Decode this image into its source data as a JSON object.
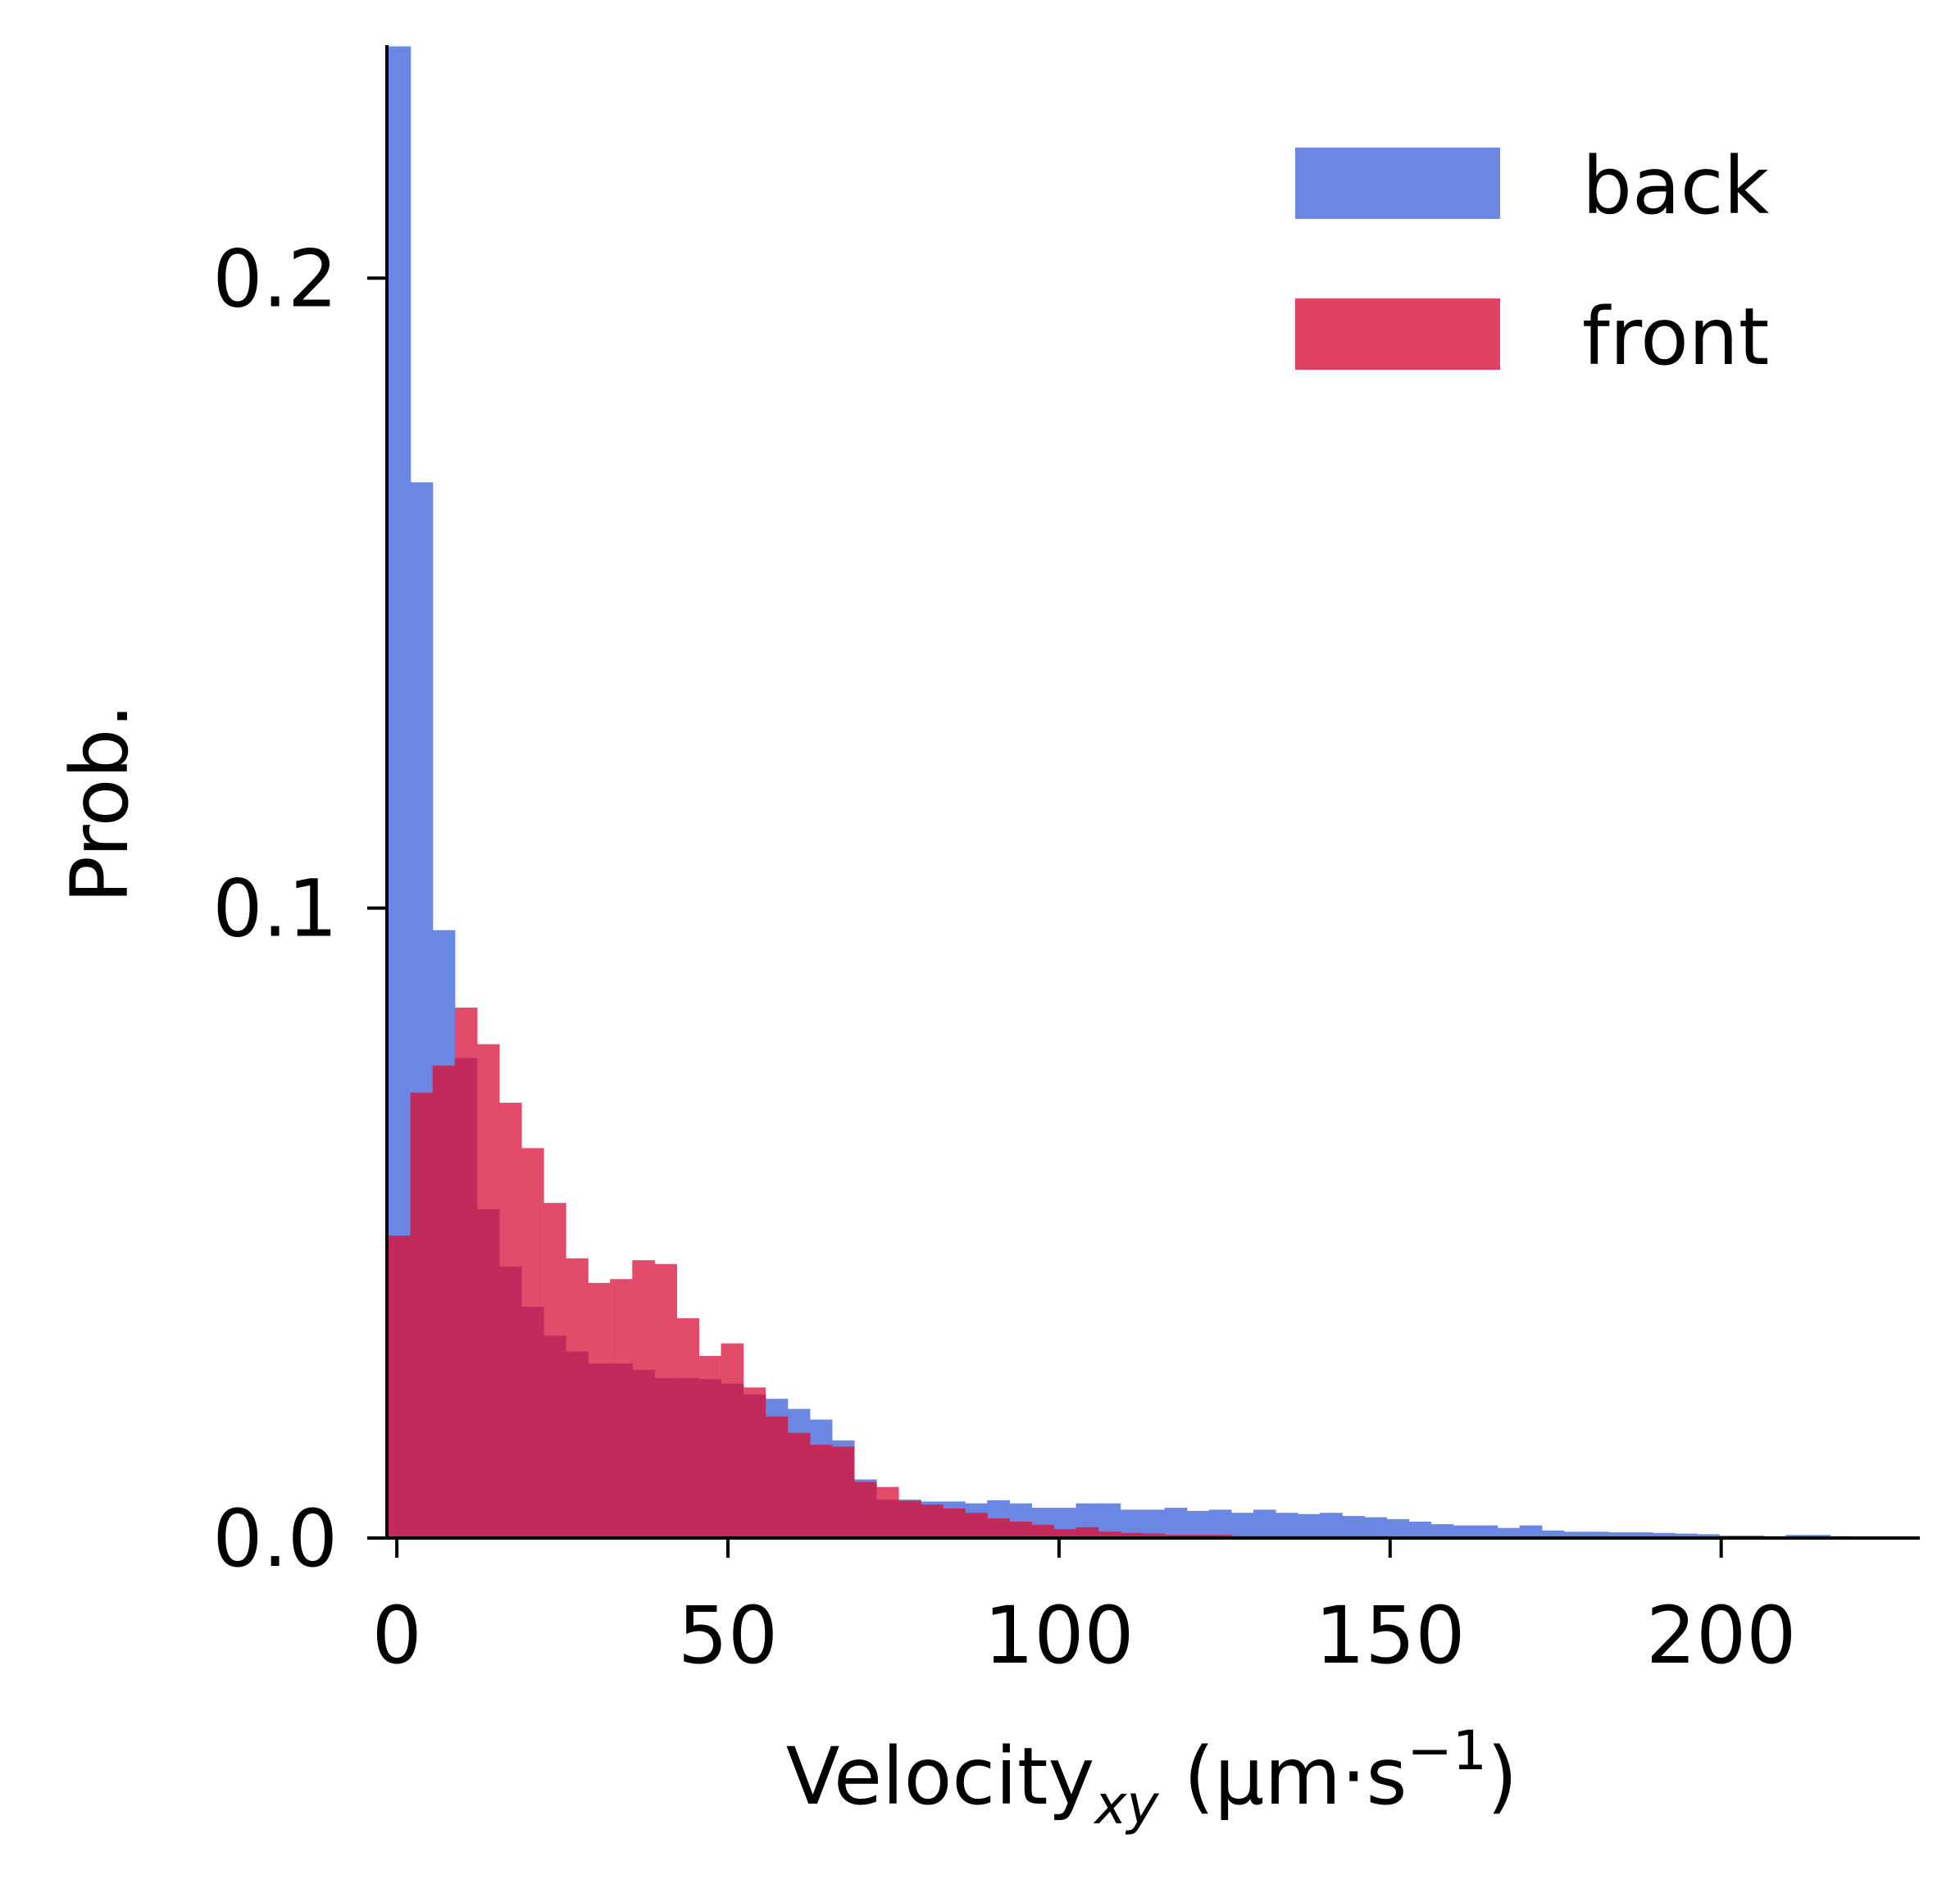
{
  "chart_data": {
    "type": "histogram",
    "xlabel": {
      "main": "Velocity",
      "subscript": "xy",
      "units": " (μm·s",
      "sup": "−1",
      "close": ")"
    },
    "ylabel": "Prob.",
    "xlim": [
      -1.5,
      230
    ],
    "ylim": [
      0,
      0.237
    ],
    "xticks": [
      0,
      50,
      100,
      150,
      200
    ],
    "xtick_labels": [
      "0",
      "50",
      "100",
      "150",
      "200"
    ],
    "yticks": [
      0.0,
      0.1,
      0.2
    ],
    "ytick_labels": [
      "0.0",
      "0.1",
      "0.2"
    ],
    "grid": false,
    "legend_position": "top-right",
    "bins": {
      "start": -1.3,
      "width": 3.35
    },
    "series": [
      {
        "name": "back",
        "color": "#6a88e3",
        "values": [
          0.2368,
          0.1676,
          0.0965,
          0.0762,
          0.0522,
          0.0431,
          0.0367,
          0.0321,
          0.0296,
          0.0277,
          0.0277,
          0.0267,
          0.0254,
          0.0254,
          0.0252,
          0.0245,
          0.0228,
          0.0221,
          0.0205,
          0.0188,
          0.0155,
          0.0093,
          0.0061,
          0.0061,
          0.0058,
          0.0058,
          0.0055,
          0.006,
          0.0055,
          0.0048,
          0.0048,
          0.0055,
          0.0055,
          0.0045,
          0.0045,
          0.0048,
          0.0043,
          0.0045,
          0.004,
          0.0045,
          0.004,
          0.0038,
          0.004,
          0.0035,
          0.0033,
          0.003,
          0.0026,
          0.0022,
          0.002,
          0.002,
          0.0016,
          0.002,
          0.0012,
          0.001,
          0.001,
          0.0009,
          0.0009,
          0.0008,
          0.0007,
          0.0006,
          0.0004,
          0.0004,
          0.0003,
          0.0005,
          0.0005,
          0.0003,
          0.0002,
          0.0002,
          0.0001
        ]
      },
      {
        "name": "front",
        "color": "#e04262",
        "values": [
          0.048,
          0.0707,
          0.075,
          0.0842,
          0.0784,
          0.0691,
          0.0619,
          0.0532,
          0.0444,
          0.0405,
          0.0411,
          0.0441,
          0.0435,
          0.0349,
          0.0289,
          0.0309,
          0.0239,
          0.0193,
          0.0167,
          0.0148,
          0.0145,
          0.0089,
          0.0081,
          0.0059,
          0.0053,
          0.0047,
          0.004,
          0.0031,
          0.0026,
          0.0021,
          0.0014,
          0.0017,
          0.001,
          0.0008,
          0.0007,
          0.0005,
          0.0005,
          0.0005,
          0.0003,
          0.0003,
          0.0003,
          0.0003,
          0.0003,
          0.0003,
          0.0003,
          0.0002,
          0.0002,
          0.0002,
          0.0002,
          0.0001,
          0.0001,
          0.0001,
          0.0001,
          0.0001,
          0.0001,
          0.0001,
          0.0001,
          0.0001,
          0.0001,
          0.0001,
          0.0001,
          0.0001,
          0.0001,
          0.0001,
          0.0001,
          0.0001,
          0.0001,
          0.0001,
          0.0001
        ]
      }
    ]
  }
}
